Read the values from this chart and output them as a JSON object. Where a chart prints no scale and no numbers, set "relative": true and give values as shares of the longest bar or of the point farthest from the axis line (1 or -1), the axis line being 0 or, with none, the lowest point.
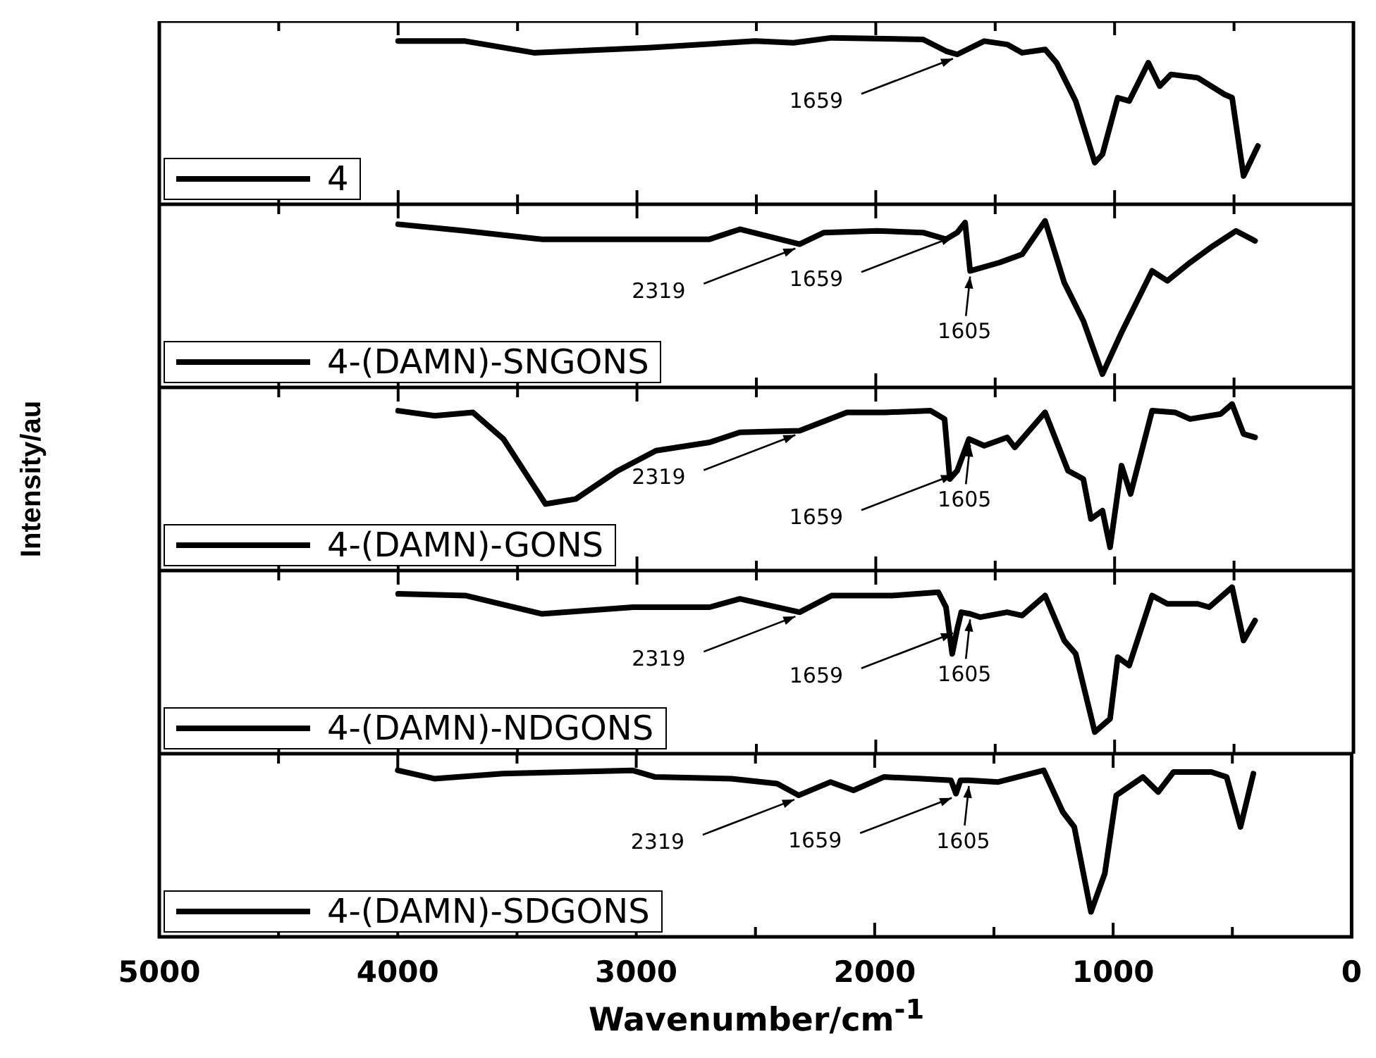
{
  "chart_data": [
    {
      "type": "line",
      "relative": true,
      "x": [
        4000,
        3719,
        3431,
        2952,
        2505,
        2345,
        2185,
        1802,
        1706,
        1659,
        1546,
        1450,
        1387,
        1291,
        1243,
        1163,
        1083,
        1051,
        987,
        939,
        859,
        811,
        764,
        652,
        540,
        508,
        460,
        400
      ],
      "series": [
        {
          "name": "4",
          "color": "#000000",
          "values": [
            0.98,
            0.98,
            0.91,
            0.94,
            0.98,
            0.97,
            1.0,
            0.99,
            0.92,
            0.9,
            0.98,
            0.96,
            0.91,
            0.93,
            0.85,
            0.62,
            0.25,
            0.3,
            0.64,
            0.62,
            0.85,
            0.71,
            0.78,
            0.76,
            0.66,
            0.64,
            0.17,
            0.35
          ]
        }
      ],
      "xlim": [
        5000,
        0
      ],
      "xticks": [
        5000,
        {
          "value": 4500,
          "label": null
        },
        4000,
        {
          "value": 3500,
          "label": null
        },
        3000,
        {
          "value": 2500,
          "label": null
        },
        2000,
        {
          "value": 1500,
          "label": null
        },
        1000,
        {
          "value": 500,
          "label": null
        },
        0
      ],
      "tick_labels": false,
      "legend": "bottom left",
      "marker": "none",
      "annotations": [
        {
          "text": "1659",
          "x": 1659,
          "y": 0.9
        }
      ]
    },
    {
      "type": "line",
      "relative": true,
      "x": [
        4000,
        3719,
        3399,
        3016,
        2696,
        2569,
        2319,
        2217,
        1994,
        1802,
        1706,
        1659,
        1626,
        1605,
        1482,
        1387,
        1291,
        1211,
        1131,
        1051,
        971,
        843,
        779,
        684,
        588,
        492,
        412
      ],
      "series": [
        {
          "name": "4-(DAMN)-SNGONS",
          "color": "#000000",
          "values": [
            0.98,
            0.94,
            0.89,
            0.89,
            0.89,
            0.95,
            0.86,
            0.93,
            0.94,
            0.93,
            0.89,
            0.93,
            0.99,
            0.7,
            0.75,
            0.8,
            1.0,
            0.63,
            0.4,
            0.08,
            0.33,
            0.7,
            0.64,
            0.75,
            0.85,
            0.94,
            0.88
          ]
        }
      ],
      "xlim": [
        5000,
        0
      ],
      "xticks": [
        5000,
        {
          "value": 4500,
          "label": null
        },
        4000,
        {
          "value": 3500,
          "label": null
        },
        3000,
        {
          "value": 2500,
          "label": null
        },
        2000,
        {
          "value": 1500,
          "label": null
        },
        1000,
        {
          "value": 500,
          "label": null
        },
        0
      ],
      "tick_labels": false,
      "legend": "bottom left",
      "marker": "none",
      "annotations": [
        {
          "text": "2319",
          "x": 2319,
          "y": 0.86
        },
        {
          "text": "1659",
          "x": 1659,
          "y": 0.93
        },
        {
          "text": "1605",
          "x": 1605,
          "y": 0.7
        }
      ]
    },
    {
      "type": "line",
      "relative": true,
      "ylabel": "Intensity/au",
      "x": [
        4000,
        3847,
        3687,
        3559,
        3383,
        3256,
        3080,
        2920,
        2696,
        2569,
        2319,
        2121,
        1962,
        1770,
        1712,
        1690,
        1659,
        1610,
        1546,
        1450,
        1418,
        1291,
        1195,
        1131,
        1099,
        1051,
        1019,
        971,
        933,
        843,
        747,
        684,
        556,
        508,
        460,
        412
      ],
      "series": [
        {
          "name": "4-(DAMN)-GONS",
          "color": "#000000",
          "values": [
            0.96,
            0.93,
            0.95,
            0.79,
            0.4,
            0.43,
            0.6,
            0.72,
            0.77,
            0.83,
            0.84,
            0.95,
            0.95,
            0.96,
            0.91,
            0.55,
            0.6,
            0.79,
            0.75,
            0.8,
            0.74,
            0.95,
            0.6,
            0.55,
            0.31,
            0.36,
            0.14,
            0.63,
            0.46,
            0.96,
            0.95,
            0.91,
            0.94,
            1.0,
            0.82,
            0.8
          ]
        }
      ],
      "xlim": [
        5000,
        0
      ],
      "xticks": [
        5000,
        {
          "value": 4500,
          "label": null
        },
        4000,
        {
          "value": 3500,
          "label": null
        },
        3000,
        {
          "value": 2500,
          "label": null
        },
        2000,
        {
          "value": 1500,
          "label": null
        },
        1000,
        {
          "value": 500,
          "label": null
        },
        0
      ],
      "tick_labels": false,
      "legend": "bottom left",
      "marker": "none",
      "annotations": [
        {
          "text": "2319",
          "x": 2319,
          "y": 0.84
        },
        {
          "text": "1659",
          "x": 1659,
          "y": 0.6
        },
        {
          "text": "1605",
          "x": 1605,
          "y": 0.79
        }
      ]
    },
    {
      "type": "line",
      "relative": true,
      "x": [
        4000,
        3719,
        3399,
        3016,
        2696,
        2569,
        2319,
        2185,
        1930,
        1738,
        1706,
        1680,
        1659,
        1642,
        1605,
        1562,
        1450,
        1387,
        1291,
        1211,
        1163,
        1083,
        1019,
        987,
        939,
        843,
        779,
        652,
        604,
        508,
        460,
        412
      ],
      "series": [
        {
          "name": "4-(DAMN)-NDGONS",
          "color": "#000000",
          "values": [
            0.96,
            0.95,
            0.84,
            0.88,
            0.88,
            0.93,
            0.85,
            0.95,
            0.95,
            0.97,
            0.88,
            0.6,
            0.75,
            0.85,
            0.84,
            0.82,
            0.85,
            0.83,
            0.95,
            0.68,
            0.6,
            0.13,
            0.21,
            0.58,
            0.53,
            0.95,
            0.9,
            0.9,
            0.88,
            1.0,
            0.68,
            0.8
          ]
        }
      ],
      "xlim": [
        5000,
        0
      ],
      "xticks": [
        5000,
        {
          "value": 4500,
          "label": null
        },
        4000,
        {
          "value": 3500,
          "label": null
        },
        3000,
        {
          "value": 2500,
          "label": null
        },
        2000,
        {
          "value": 1500,
          "label": null
        },
        1000,
        {
          "value": 500,
          "label": null
        },
        0
      ],
      "tick_labels": false,
      "legend": "bottom left",
      "marker": "none",
      "annotations": [
        {
          "text": "2319",
          "x": 2319,
          "y": 0.85
        },
        {
          "text": "1659",
          "x": 1659,
          "y": 0.75
        },
        {
          "text": "1605",
          "x": 1605,
          "y": 0.84
        }
      ]
    },
    {
      "type": "line",
      "relative": true,
      "xlabel": "Wavenumber/cm$^{-1}$",
      "x": [
        4000,
        3847,
        3559,
        3016,
        2920,
        2601,
        2409,
        2319,
        2185,
        2089,
        1962,
        1802,
        1680,
        1659,
        1640,
        1605,
        1482,
        1291,
        1211,
        1163,
        1093,
        1035,
        987,
        875,
        811,
        747,
        588,
        524,
        466,
        412
      ],
      "series": [
        {
          "name": "4-(DAMN)-SDGONS",
          "color": "#000000",
          "values": [
            1.0,
            0.95,
            0.98,
            1.0,
            0.96,
            0.95,
            0.92,
            0.85,
            0.93,
            0.88,
            0.96,
            0.95,
            0.94,
            0.86,
            0.94,
            0.94,
            0.93,
            1.0,
            0.75,
            0.66,
            0.15,
            0.38,
            0.85,
            0.96,
            0.87,
            0.99,
            0.99,
            0.96,
            0.66,
            0.98
          ]
        }
      ],
      "xlim": [
        5000,
        0
      ],
      "xticks": [
        5000,
        {
          "value": 4500,
          "label": null
        },
        4000,
        {
          "value": 3500,
          "label": null
        },
        3000,
        {
          "value": 2500,
          "label": null
        },
        2000,
        {
          "value": 1500,
          "label": null
        },
        1000,
        {
          "value": 500,
          "label": null
        },
        0
      ],
      "tick_labels": "x",
      "legend": "bottom left",
      "marker": "none",
      "annotations": [
        {
          "text": "2319",
          "x": 2319,
          "y": 0.85
        },
        {
          "text": "1659",
          "x": 1659,
          "y": 0.86
        },
        {
          "text": "1605",
          "x": 1605,
          "y": 0.94
        }
      ]
    }
  ]
}
